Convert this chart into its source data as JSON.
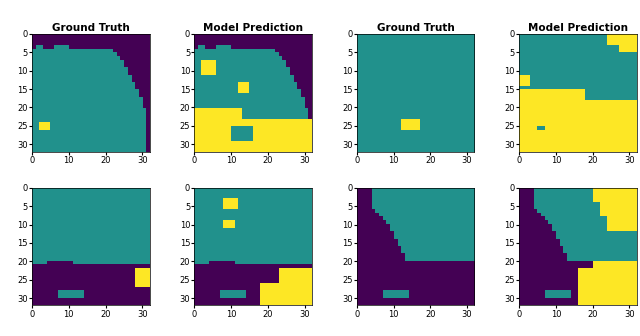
{
  "title_row1_col1": "Ground Truth",
  "title_row1_col2": "Model Prediction",
  "title_row1_col3": "Ground Truth",
  "title_row1_col4": "Model Prediction",
  "colormap_colors": [
    "#440154",
    "#21918c",
    "#fde725"
  ],
  "grid_size": 32,
  "background": "#ffffff"
}
